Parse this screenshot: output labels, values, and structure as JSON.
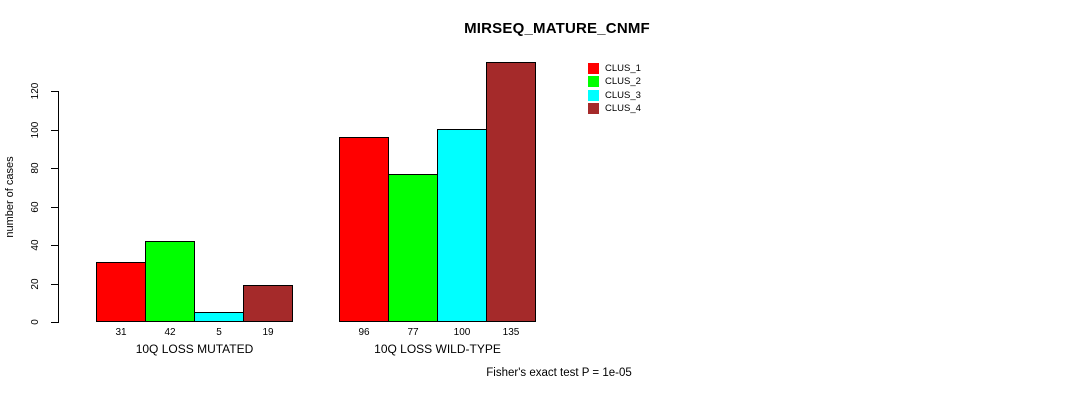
{
  "chart_data": {
    "type": "bar",
    "title": "MIRSEQ_MATURE_CNMF",
    "xlabel": "",
    "ylabel": "number of cases",
    "annotation": "Fisher's exact test P = 1e-05",
    "categories": [
      "10Q LOSS MUTATED",
      "10Q LOSS WILD-TYPE"
    ],
    "series": [
      {
        "name": "CLUS_1",
        "color": "#FF0000",
        "values": [
          31,
          96
        ]
      },
      {
        "name": "CLUS_2",
        "color": "#00FF00",
        "values": [
          42,
          77
        ]
      },
      {
        "name": "CLUS_3",
        "color": "#00FFFF",
        "values": [
          5,
          100
        ]
      },
      {
        "name": "CLUS_4",
        "color": "#A52A2A",
        "values": [
          19,
          135
        ]
      }
    ],
    "bar_value_labels": [
      [
        31,
        42,
        5,
        19
      ],
      [
        96,
        77,
        100,
        135
      ]
    ],
    "yticks": [
      0,
      20,
      40,
      60,
      80,
      100,
      120
    ],
    "ylim": [
      0,
      135
    ],
    "grid": false,
    "legend_position": "top-right",
    "bar_border_color": "#000000",
    "background_color": "#FFFFFF",
    "text_color": "#000000"
  }
}
